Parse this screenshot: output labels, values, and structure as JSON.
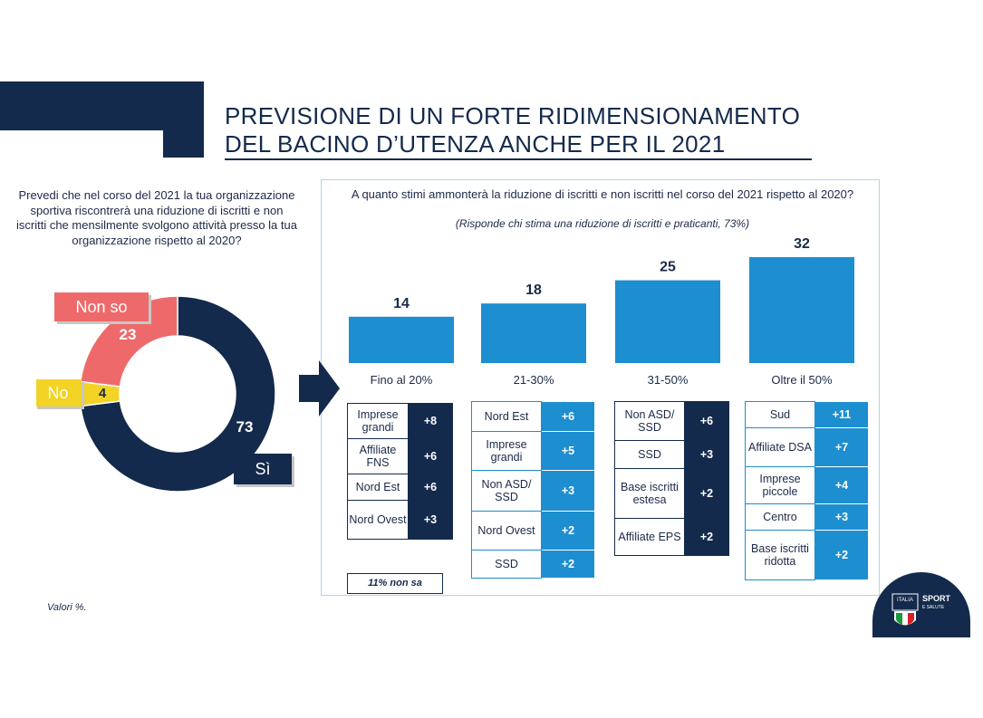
{
  "title": {
    "line1": "PREVISIONE DI UN FORTE RIDIMENSIONAMENTO",
    "line2": "DEL BACINO D’UTENZA ANCHE PER IL 2021"
  },
  "left_question": "Prevedi che nel corso del 2021 la tua organizzazione sportiva riscontrerà una riduzione di iscritti e non iscritti che mensilmente svolgono attività presso la tua organizzazione rispetto al 2020?",
  "panel": {
    "question": "A quanto stimi ammonterà la riduzione di iscritti e non iscritti nel corso del 2021 rispetto al 2020?",
    "note": "(Risponde chi stima una riduzione di iscritti e praticanti, 73%)",
    "non_sa": "11% non sa"
  },
  "footnote": "Valori %.",
  "logo": {
    "text1": "ITALIA",
    "text2": "SPORT",
    "text3": "E SALUTE"
  },
  "colors": {
    "navy": "#142a4c",
    "blue": "#1d8ed0",
    "coral": "#ee6a6a",
    "yellow": "#f2d326"
  },
  "chart_data": [
    {
      "type": "pie",
      "subtype": "donut",
      "categories": [
        "Sì",
        "No",
        "Non so"
      ],
      "values": [
        73,
        4,
        23
      ],
      "colors": [
        "#142a4c",
        "#f2d326",
        "#ee6a6a"
      ]
    },
    {
      "type": "bar",
      "categories": [
        "Fino al 20%",
        "21-30%",
        "31-50%",
        "Oltre il 50%"
      ],
      "values": [
        14,
        18,
        25,
        32
      ],
      "color": "#1d8ed0",
      "ylim": [
        0,
        32
      ]
    }
  ],
  "detail_tables": [
    {
      "style": "dark",
      "rows": [
        {
          "label": "Imprese grandi",
          "value": "+8"
        },
        {
          "label": "Affiliate FNS",
          "value": "+6"
        },
        {
          "label": "Nord Est",
          "value": "+6"
        },
        {
          "label": "Nord Ovest",
          "value": "+3"
        }
      ]
    },
    {
      "style": "blue",
      "rows": [
        {
          "label": "Nord Est",
          "value": "+6"
        },
        {
          "label": "Imprese grandi",
          "value": "+5"
        },
        {
          "label": "Non ASD/ SSD",
          "value": "+3"
        },
        {
          "label": "Nord Ovest",
          "value": "+2"
        },
        {
          "label": "SSD",
          "value": "+2"
        }
      ]
    },
    {
      "style": "dark",
      "rows": [
        {
          "label": "Non ASD/ SSD",
          "value": "+6"
        },
        {
          "label": "SSD",
          "value": "+3"
        },
        {
          "label": "Base iscritti estesa",
          "value": "+2"
        },
        {
          "label": "Affiliate EPS",
          "value": "+2"
        }
      ]
    },
    {
      "style": "blue",
      "rows": [
        {
          "label": "Sud",
          "value": "+11"
        },
        {
          "label": "Affiliate DSA",
          "value": "+7"
        },
        {
          "label": "Imprese piccole",
          "value": "+4"
        },
        {
          "label": "Centro",
          "value": "+3"
        },
        {
          "label": "Base iscritti ridotta",
          "value": "+2"
        }
      ]
    }
  ]
}
